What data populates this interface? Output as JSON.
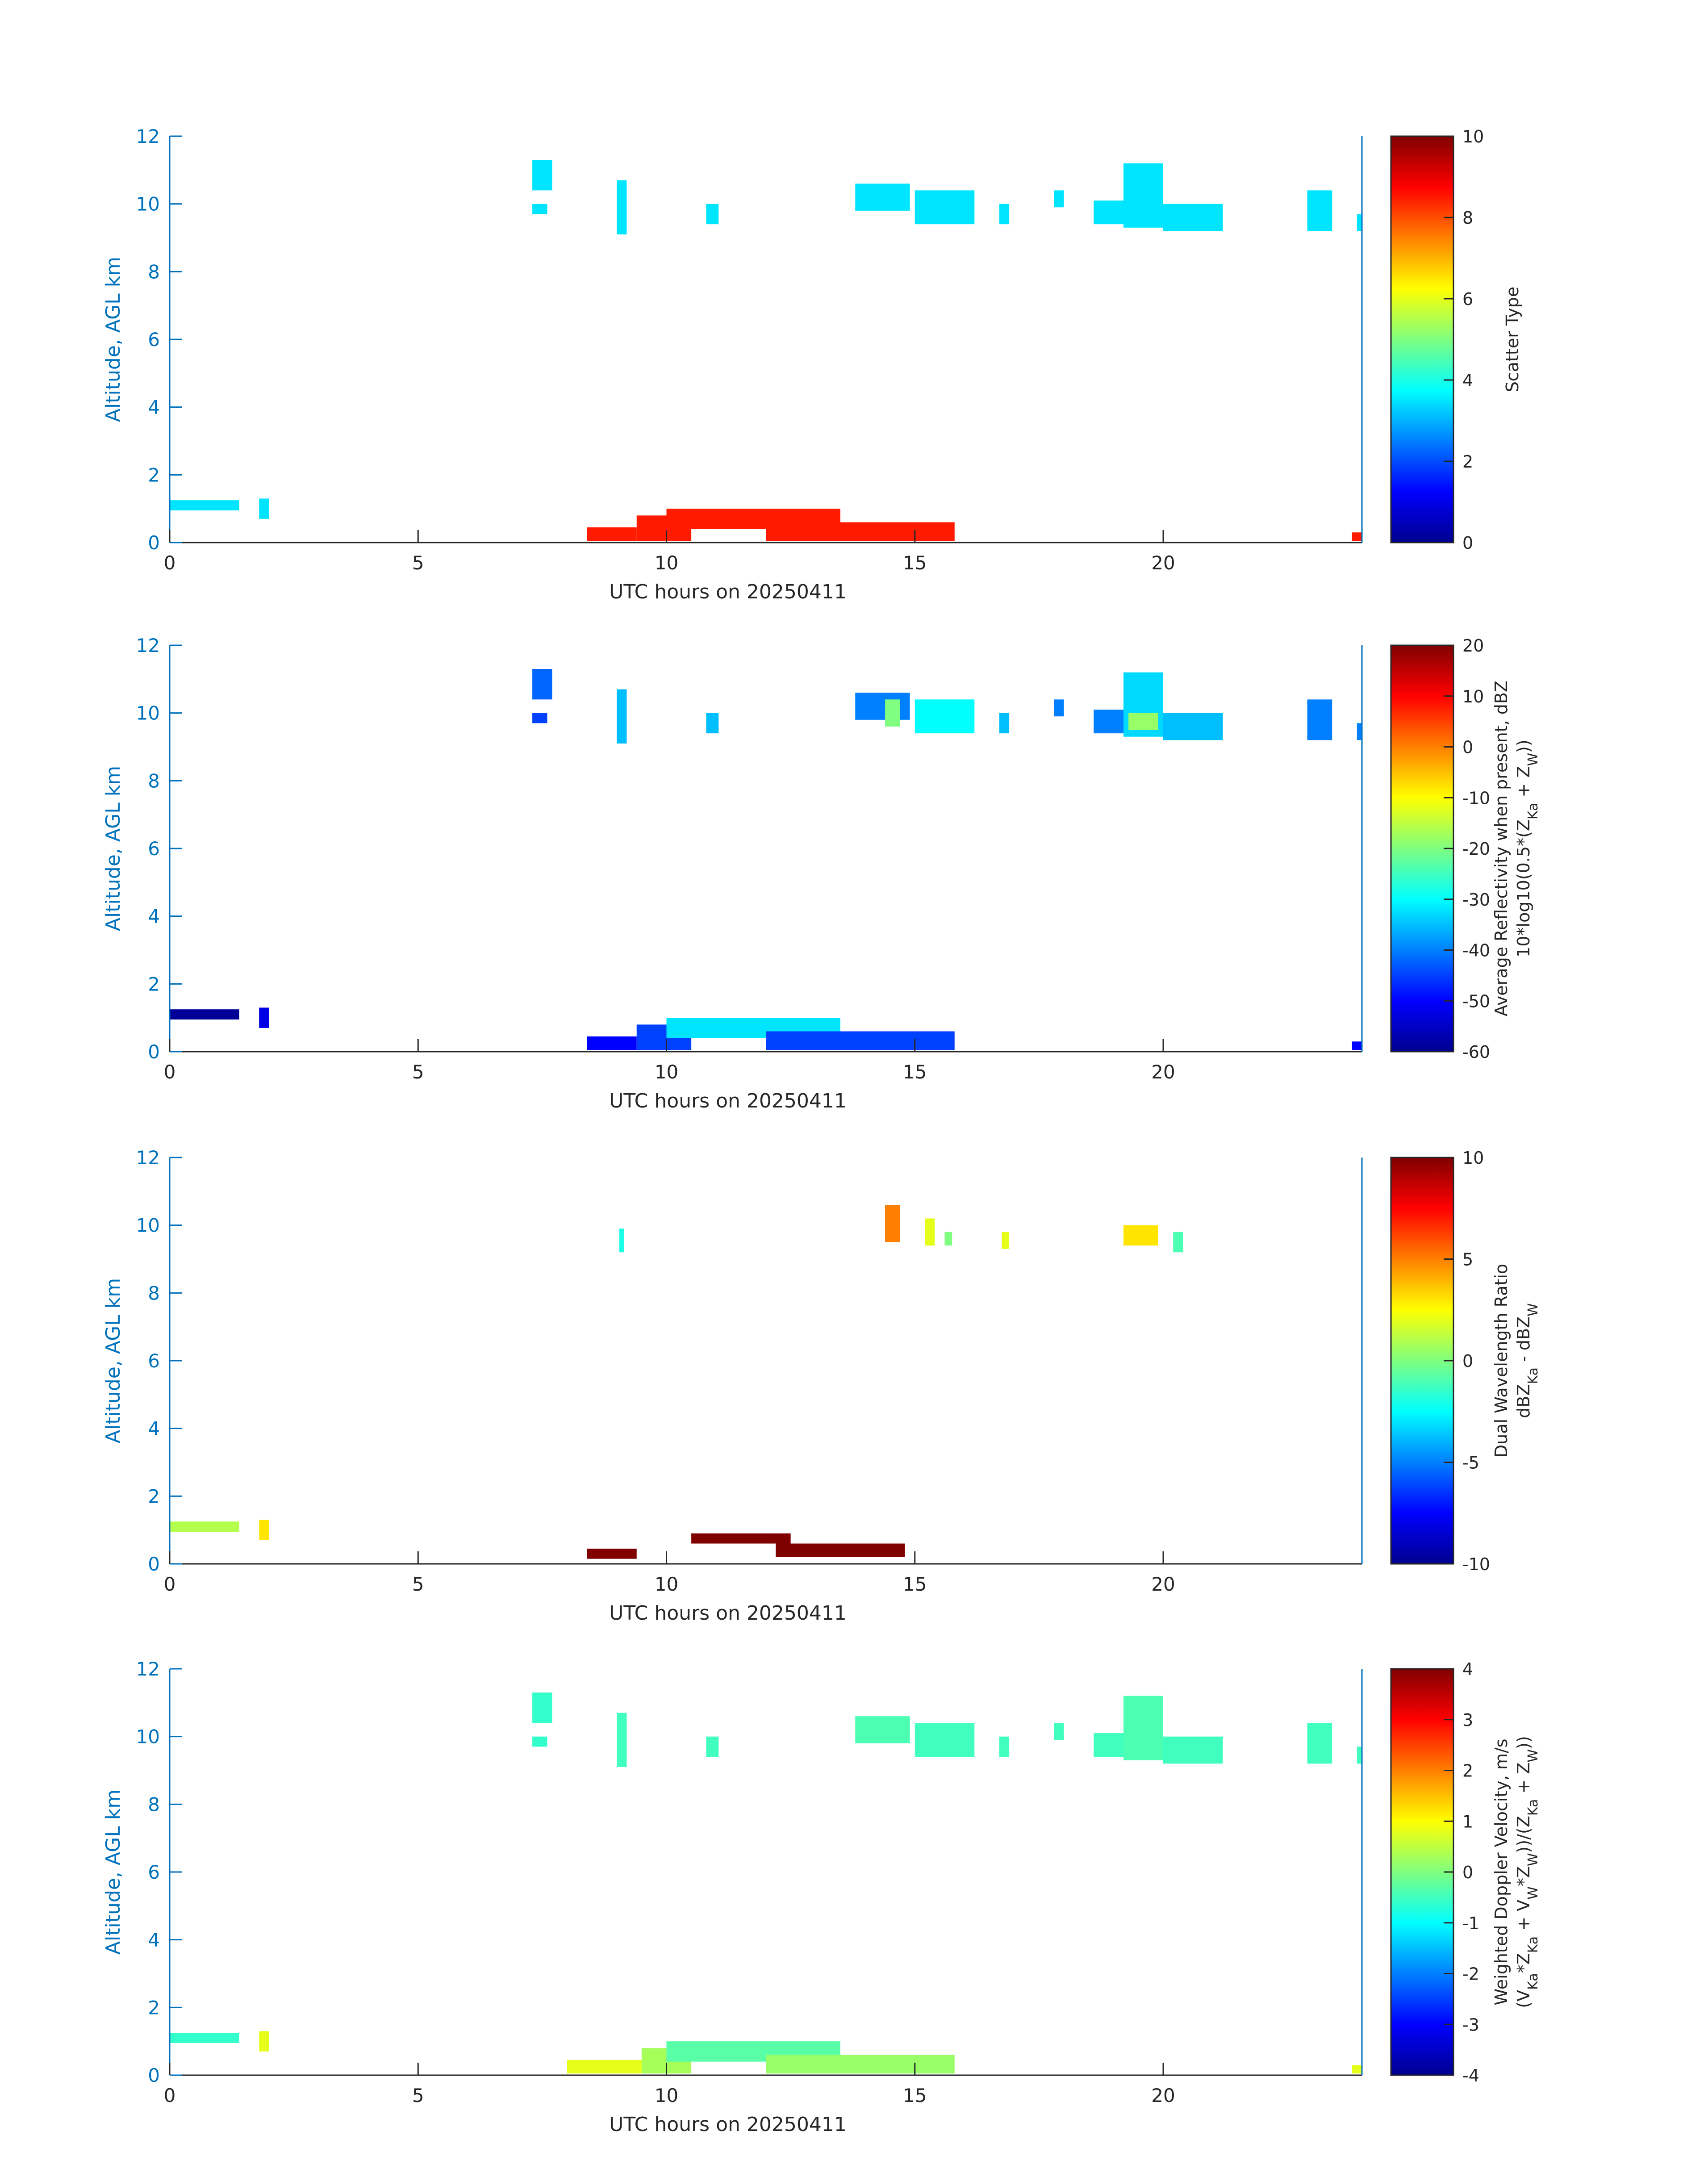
{
  "figure": {
    "date_label": "UTC hours on 20250411",
    "ylabel": "Altitude, AGL km"
  },
  "colors": {
    "axis": "#0072BD",
    "text": "#262626"
  },
  "chart_data": [
    {
      "type": "heatmap",
      "xlabel": "UTC hours on 20250411",
      "ylabel": "Altitude, AGL km",
      "xlim": [
        0,
        24
      ],
      "ylim": [
        0,
        12
      ],
      "xticks": [
        0,
        5,
        10,
        15,
        20
      ],
      "yticks": [
        0,
        2,
        4,
        6,
        8,
        10,
        12
      ],
      "colorbar": {
        "label_lines": [
          "Scatter Type"
        ],
        "clim": [
          0,
          10
        ],
        "ticks": [
          0,
          2,
          4,
          6,
          8,
          10
        ]
      },
      "regions": [
        {
          "x0": 7.3,
          "x1": 7.7,
          "y0": 10.4,
          "y1": 11.3,
          "value": 3.5
        },
        {
          "x0": 7.3,
          "x1": 7.6,
          "y0": 9.7,
          "y1": 10.0,
          "value": 3.5
        },
        {
          "x0": 9.0,
          "x1": 9.2,
          "y0": 9.1,
          "y1": 10.7,
          "value": 3.5
        },
        {
          "x0": 10.8,
          "x1": 11.05,
          "y0": 9.4,
          "y1": 10.0,
          "value": 3.5
        },
        {
          "x0": 13.8,
          "x1": 14.9,
          "y0": 9.8,
          "y1": 10.6,
          "value": 3.5
        },
        {
          "x0": 15.0,
          "x1": 16.2,
          "y0": 9.4,
          "y1": 10.4,
          "value": 3.5
        },
        {
          "x0": 16.7,
          "x1": 16.9,
          "y0": 9.4,
          "y1": 10.0,
          "value": 3.5
        },
        {
          "x0": 17.8,
          "x1": 18.0,
          "y0": 9.9,
          "y1": 10.4,
          "value": 3.5
        },
        {
          "x0": 18.6,
          "x1": 19.2,
          "y0": 9.4,
          "y1": 10.1,
          "value": 3.5
        },
        {
          "x0": 19.2,
          "x1": 20.0,
          "y0": 9.3,
          "y1": 11.2,
          "value": 3.5
        },
        {
          "x0": 20.0,
          "x1": 21.2,
          "y0": 9.2,
          "y1": 10.0,
          "value": 3.5
        },
        {
          "x0": 22.9,
          "x1": 23.4,
          "y0": 9.2,
          "y1": 10.4,
          "value": 3.5
        },
        {
          "x0": 23.9,
          "x1": 24.0,
          "y0": 9.2,
          "y1": 9.7,
          "value": 3.5
        },
        {
          "x0": 0.0,
          "x1": 1.4,
          "y0": 0.95,
          "y1": 1.25,
          "value": 3.5
        },
        {
          "x0": 1.8,
          "x1": 2.0,
          "y0": 0.7,
          "y1": 1.3,
          "value": 3.5
        },
        {
          "x0": 8.4,
          "x1": 9.4,
          "y0": 0.05,
          "y1": 0.45,
          "value": 8.5
        },
        {
          "x0": 9.4,
          "x1": 10.5,
          "y0": 0.05,
          "y1": 0.8,
          "value": 8.5
        },
        {
          "x0": 10.0,
          "x1": 13.5,
          "y0": 0.4,
          "y1": 1.0,
          "value": 8.5
        },
        {
          "x0": 12.0,
          "x1": 15.8,
          "y0": 0.05,
          "y1": 0.6,
          "value": 8.5
        },
        {
          "x0": 23.8,
          "x1": 24.0,
          "y0": 0.05,
          "y1": 0.3,
          "value": 8.5
        }
      ]
    },
    {
      "type": "heatmap",
      "xlabel": "UTC hours on 20250411",
      "ylabel": "Altitude, AGL km",
      "xlim": [
        0,
        24
      ],
      "ylim": [
        0,
        12
      ],
      "xticks": [
        0,
        5,
        10,
        15,
        20
      ],
      "yticks": [
        0,
        2,
        4,
        6,
        8,
        10,
        12
      ],
      "colorbar": {
        "label_lines": [
          "Average Reflectivity when present, dBZ",
          "10*log10(0.5*(Z_Ka + Z_W))"
        ],
        "clim": [
          -60,
          20
        ],
        "ticks": [
          -60,
          -50,
          -40,
          -30,
          -20,
          -10,
          0,
          10,
          20
        ]
      },
      "regions": [
        {
          "x0": 7.3,
          "x1": 7.7,
          "y0": 10.4,
          "y1": 11.3,
          "value": -42
        },
        {
          "x0": 7.3,
          "x1": 7.6,
          "y0": 9.7,
          "y1": 10.0,
          "value": -45
        },
        {
          "x0": 9.0,
          "x1": 9.2,
          "y0": 9.1,
          "y1": 10.7,
          "value": -35
        },
        {
          "x0": 10.8,
          "x1": 11.05,
          "y0": 9.4,
          "y1": 10.0,
          "value": -35
        },
        {
          "x0": 13.8,
          "x1": 14.9,
          "y0": 9.8,
          "y1": 10.6,
          "value": -40
        },
        {
          "x0": 14.4,
          "x1": 14.7,
          "y0": 9.6,
          "y1": 10.4,
          "value": -20
        },
        {
          "x0": 15.0,
          "x1": 16.2,
          "y0": 9.4,
          "y1": 10.4,
          "value": -30
        },
        {
          "x0": 16.7,
          "x1": 16.9,
          "y0": 9.4,
          "y1": 10.0,
          "value": -35
        },
        {
          "x0": 17.8,
          "x1": 18.0,
          "y0": 9.9,
          "y1": 10.4,
          "value": -40
        },
        {
          "x0": 18.6,
          "x1": 19.2,
          "y0": 9.4,
          "y1": 10.1,
          "value": -40
        },
        {
          "x0": 19.2,
          "x1": 20.0,
          "y0": 9.3,
          "y1": 11.2,
          "value": -33
        },
        {
          "x0": 19.3,
          "x1": 19.9,
          "y0": 9.5,
          "y1": 10.0,
          "value": -18
        },
        {
          "x0": 20.0,
          "x1": 21.2,
          "y0": 9.2,
          "y1": 10.0,
          "value": -35
        },
        {
          "x0": 22.9,
          "x1": 23.4,
          "y0": 9.2,
          "y1": 10.4,
          "value": -40
        },
        {
          "x0": 23.9,
          "x1": 24.0,
          "y0": 9.2,
          "y1": 9.7,
          "value": -40
        },
        {
          "x0": 0.0,
          "x1": 1.4,
          "y0": 0.95,
          "y1": 1.25,
          "value": -58
        },
        {
          "x0": 1.8,
          "x1": 2.0,
          "y0": 0.7,
          "y1": 1.3,
          "value": -52
        },
        {
          "x0": 8.4,
          "x1": 9.4,
          "y0": 0.05,
          "y1": 0.45,
          "value": -50
        },
        {
          "x0": 9.4,
          "x1": 10.5,
          "y0": 0.05,
          "y1": 0.8,
          "value": -45
        },
        {
          "x0": 10.0,
          "x1": 13.5,
          "y0": 0.4,
          "y1": 1.0,
          "value": -32
        },
        {
          "x0": 12.0,
          "x1": 15.8,
          "y0": 0.05,
          "y1": 0.6,
          "value": -45
        },
        {
          "x0": 23.8,
          "x1": 24.0,
          "y0": 0.05,
          "y1": 0.3,
          "value": -50
        }
      ]
    },
    {
      "type": "heatmap",
      "xlabel": "UTC hours on 20250411",
      "ylabel": "Altitude, AGL km",
      "xlim": [
        0,
        24
      ],
      "ylim": [
        0,
        12
      ],
      "xticks": [
        0,
        5,
        10,
        15,
        20
      ],
      "yticks": [
        0,
        2,
        4,
        6,
        8,
        10,
        12
      ],
      "colorbar": {
        "label_lines": [
          "Dual Wavelength Ratio",
          "dBZ_Ka - dBZ_W"
        ],
        "clim": [
          -10,
          10
        ],
        "ticks": [
          -10,
          -5,
          0,
          5,
          10
        ]
      },
      "regions": [
        {
          "x0": 9.05,
          "x1": 9.15,
          "y0": 9.2,
          "y1": 9.9,
          "value": -2
        },
        {
          "x0": 14.4,
          "x1": 14.7,
          "y0": 9.5,
          "y1": 10.6,
          "value": 5
        },
        {
          "x0": 15.2,
          "x1": 15.4,
          "y0": 9.4,
          "y1": 10.2,
          "value": 2
        },
        {
          "x0": 15.6,
          "x1": 15.75,
          "y0": 9.4,
          "y1": 9.8,
          "value": 0
        },
        {
          "x0": 16.75,
          "x1": 16.9,
          "y0": 9.3,
          "y1": 9.8,
          "value": 2
        },
        {
          "x0": 19.2,
          "x1": 19.9,
          "y0": 9.4,
          "y1": 10.0,
          "value": 3
        },
        {
          "x0": 20.2,
          "x1": 20.4,
          "y0": 9.2,
          "y1": 9.8,
          "value": -1
        },
        {
          "x0": 0.0,
          "x1": 1.4,
          "y0": 0.95,
          "y1": 1.25,
          "value": 1
        },
        {
          "x0": 1.8,
          "x1": 2.0,
          "y0": 0.7,
          "y1": 1.3,
          "value": 3
        },
        {
          "x0": 8.4,
          "x1": 9.4,
          "y0": 0.15,
          "y1": 0.45,
          "value": 10
        },
        {
          "x0": 10.5,
          "x1": 12.5,
          "y0": 0.6,
          "y1": 0.9,
          "value": 10
        },
        {
          "x0": 12.2,
          "x1": 14.8,
          "y0": 0.2,
          "y1": 0.6,
          "value": 10
        }
      ]
    },
    {
      "type": "heatmap",
      "xlabel": "UTC hours on 20250411",
      "ylabel": "Altitude, AGL km",
      "xlim": [
        0,
        24
      ],
      "ylim": [
        0,
        12
      ],
      "xticks": [
        0,
        5,
        10,
        15,
        20
      ],
      "yticks": [
        0,
        2,
        4,
        6,
        8,
        10,
        12
      ],
      "colorbar": {
        "label_lines": [
          "Weighted Doppler Velocity, m/s",
          "(V_Ka*Z_Ka + V_W*Z_W))/(Z_Ka + Z_W))"
        ],
        "clim": [
          -4,
          4
        ],
        "ticks": [
          -4,
          -3,
          -2,
          -1,
          0,
          1,
          2,
          3,
          4
        ]
      },
      "regions": [
        {
          "x0": 7.3,
          "x1": 7.7,
          "y0": 10.4,
          "y1": 11.3,
          "value": -0.6
        },
        {
          "x0": 7.3,
          "x1": 7.6,
          "y0": 9.7,
          "y1": 10.0,
          "value": -0.6
        },
        {
          "x0": 9.0,
          "x1": 9.2,
          "y0": 9.1,
          "y1": 10.7,
          "value": -0.5
        },
        {
          "x0": 10.8,
          "x1": 11.05,
          "y0": 9.4,
          "y1": 10.0,
          "value": -0.5
        },
        {
          "x0": 13.8,
          "x1": 14.9,
          "y0": 9.8,
          "y1": 10.6,
          "value": -0.4
        },
        {
          "x0": 15.0,
          "x1": 16.2,
          "y0": 9.4,
          "y1": 10.4,
          "value": -0.5
        },
        {
          "x0": 16.7,
          "x1": 16.9,
          "y0": 9.4,
          "y1": 10.0,
          "value": -0.5
        },
        {
          "x0": 17.8,
          "x1": 18.0,
          "y0": 9.9,
          "y1": 10.4,
          "value": -0.5
        },
        {
          "x0": 18.6,
          "x1": 19.2,
          "y0": 9.4,
          "y1": 10.1,
          "value": -0.5
        },
        {
          "x0": 19.2,
          "x1": 20.0,
          "y0": 9.3,
          "y1": 11.2,
          "value": -0.4
        },
        {
          "x0": 20.0,
          "x1": 21.2,
          "y0": 9.2,
          "y1": 10.0,
          "value": -0.5
        },
        {
          "x0": 22.9,
          "x1": 23.4,
          "y0": 9.2,
          "y1": 10.4,
          "value": -0.5
        },
        {
          "x0": 23.9,
          "x1": 24.0,
          "y0": 9.2,
          "y1": 9.7,
          "value": -0.5
        },
        {
          "x0": 0.0,
          "x1": 1.4,
          "y0": 0.95,
          "y1": 1.25,
          "value": -0.6
        },
        {
          "x0": 1.8,
          "x1": 2.0,
          "y0": 0.7,
          "y1": 1.3,
          "value": 0.8
        },
        {
          "x0": 8.0,
          "x1": 9.5,
          "y0": 0.05,
          "y1": 0.45,
          "value": 0.8
        },
        {
          "x0": 9.5,
          "x1": 10.5,
          "y0": 0.05,
          "y1": 0.8,
          "value": 0.3
        },
        {
          "x0": 10.0,
          "x1": 13.5,
          "y0": 0.4,
          "y1": 1.0,
          "value": -0.3
        },
        {
          "x0": 12.0,
          "x1": 15.8,
          "y0": 0.05,
          "y1": 0.6,
          "value": 0.2
        },
        {
          "x0": 23.8,
          "x1": 24.0,
          "y0": 0.05,
          "y1": 0.3,
          "value": 0.8
        }
      ]
    }
  ]
}
